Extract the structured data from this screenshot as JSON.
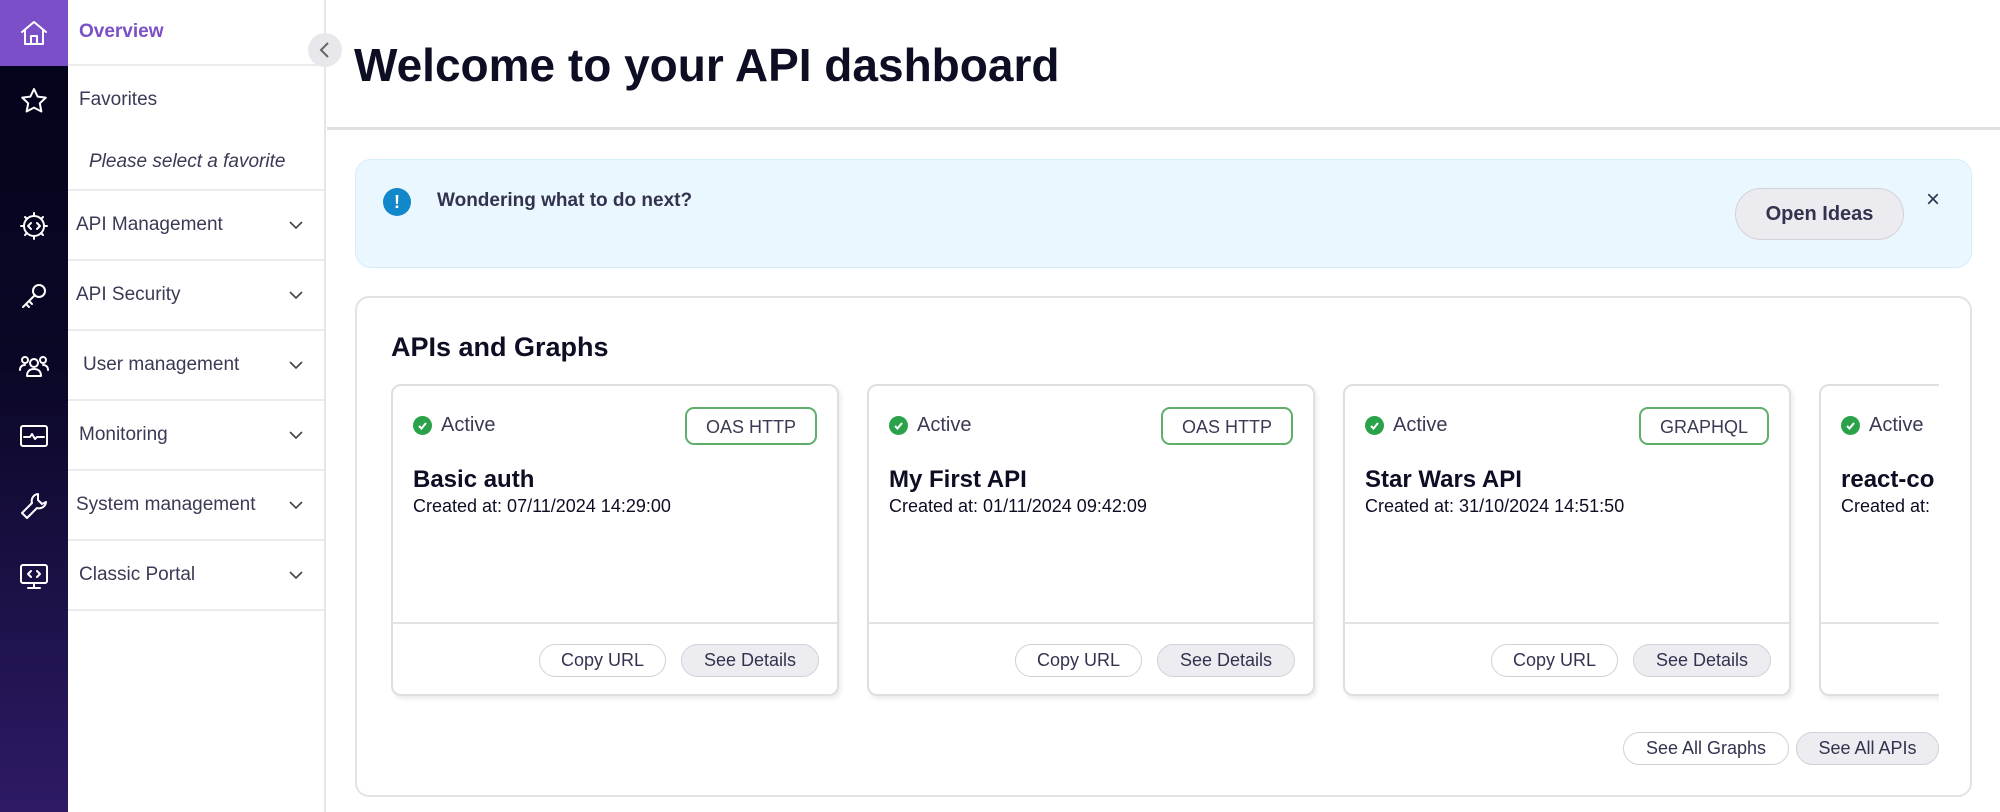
{
  "rail": {
    "icons": [
      "home-icon",
      "star-icon",
      "api-gear-icon",
      "key-icon",
      "users-icon",
      "monitor-pulse-icon",
      "wrench-icon",
      "screen-code-icon"
    ]
  },
  "nav": {
    "overview": "Overview",
    "favorites": "Favorites",
    "favorites_empty": "Please select a favorite",
    "sections": [
      {
        "label": "API Management"
      },
      {
        "label": "API Security"
      },
      {
        "label": "User management"
      },
      {
        "label": "Monitoring"
      },
      {
        "label": "System management"
      },
      {
        "label": "Classic Portal"
      }
    ]
  },
  "header": {
    "title": "Welcome to your API dashboard"
  },
  "banner": {
    "message": "Wondering what to do next?",
    "button": "Open Ideas",
    "close": "×"
  },
  "apis": {
    "title": "APIs and Graphs",
    "cards": [
      {
        "status": "Active",
        "type": "OAS HTTP",
        "name": "Basic auth",
        "created": "Created at: 07/11/2024 14:29:00",
        "copy": "Copy URL",
        "details": "See Details"
      },
      {
        "status": "Active",
        "type": "OAS HTTP",
        "name": "My First API",
        "created": "Created at: 01/11/2024 09:42:09",
        "copy": "Copy URL",
        "details": "See Details"
      },
      {
        "status": "Active",
        "type": "GRAPHQL",
        "name": "Star Wars API",
        "created": "Created at: 31/10/2024 14:51:50",
        "copy": "Copy URL",
        "details": "See Details"
      },
      {
        "status": "Active",
        "name": "react-co",
        "created": "Created at:"
      }
    ],
    "see_all_graphs": "See All Graphs",
    "see_all_apis": "See All APIs"
  },
  "colors": {
    "accent": "#7b4fc7",
    "active": "#2aa24a",
    "info": "#1287c9",
    "banner_bg": "#eaf7fe"
  }
}
